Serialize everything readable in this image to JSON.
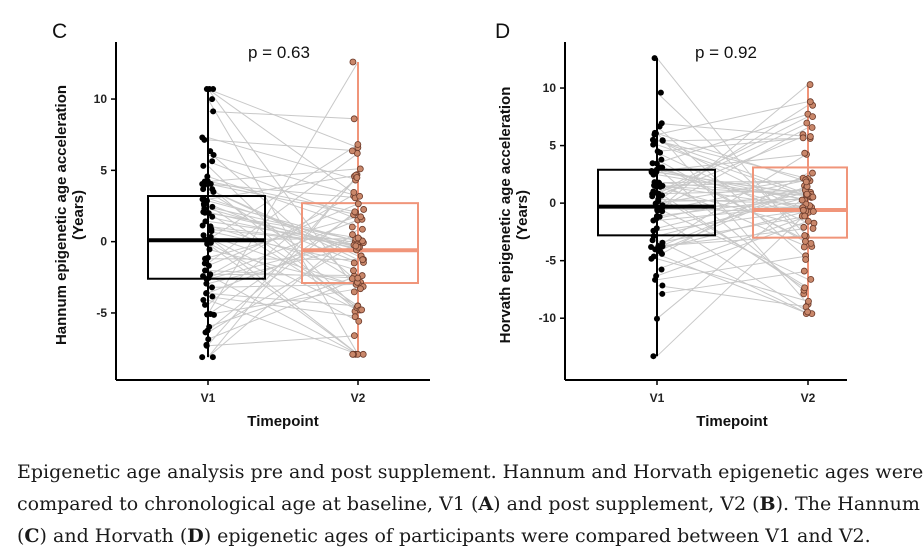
{
  "chart_data": [
    {
      "type": "box",
      "panel": "C",
      "annotation": "p = 0.63",
      "xlabel": "Timepoint",
      "ylabel": "Hannum epigenetic age acceleration",
      "ylabel_unit": "(Years)",
      "categories": [
        "V1",
        "V2"
      ],
      "ylim": [
        -9,
        14
      ],
      "yticks": [
        10,
        5,
        0,
        -5
      ],
      "colors": {
        "V1": "#000000",
        "V2": "#f0957a",
        "lines": "#c8c8c8",
        "point_fill_V2": "#c9876a"
      },
      "boxes": [
        {
          "category": "V1",
          "q1": -2.6,
          "median": 0.1,
          "q3": 3.2,
          "whisker_low": -8.1,
          "whisker_high": 10.7
        },
        {
          "category": "V2",
          "q1": -2.9,
          "median": -0.6,
          "q3": 2.7,
          "whisker_low": -7.9,
          "whisker_high": 12.6
        }
      ],
      "n_participants": 72,
      "seed": 7
    },
    {
      "type": "box",
      "panel": "D",
      "annotation": "p = 0.92",
      "xlabel": "Timepoint",
      "ylabel": "Horvath epigenetic age acceleration",
      "ylabel_unit": "(Years)",
      "categories": [
        "V1",
        "V2"
      ],
      "ylim": [
        -14.5,
        14
      ],
      "yticks": [
        10,
        5,
        0,
        -5,
        -10
      ],
      "colors": {
        "V1": "#000000",
        "V2": "#f0957a",
        "lines": "#c8c8c8",
        "point_fill_V2": "#c9876a"
      },
      "boxes": [
        {
          "category": "V1",
          "q1": -2.8,
          "median": -0.3,
          "q3": 2.9,
          "whisker_low": -13.3,
          "whisker_high": 12.6
        },
        {
          "category": "V2",
          "q1": -3.0,
          "median": -0.6,
          "q3": 3.1,
          "whisker_low": -9.6,
          "whisker_high": 10.3
        }
      ],
      "n_participants": 72,
      "seed": 13
    }
  ],
  "caption": {
    "line1": "Epigenetic age analysis pre and post supplement. Hannum and Horvath epigenetic ages were",
    "line2_a": "compared to chronological age at baseline, V1 (",
    "line2_b": "A",
    "line2_c": ") and post supplement, V2 (",
    "line2_d": "B",
    "line2_e": "). The Hannum",
    "line3_a": "(",
    "line3_b": "C",
    "line3_c": ") and Horvath (",
    "line3_d": "D",
    "line3_e": ") epigenetic ages of participants were compared between V1 and V2."
  }
}
